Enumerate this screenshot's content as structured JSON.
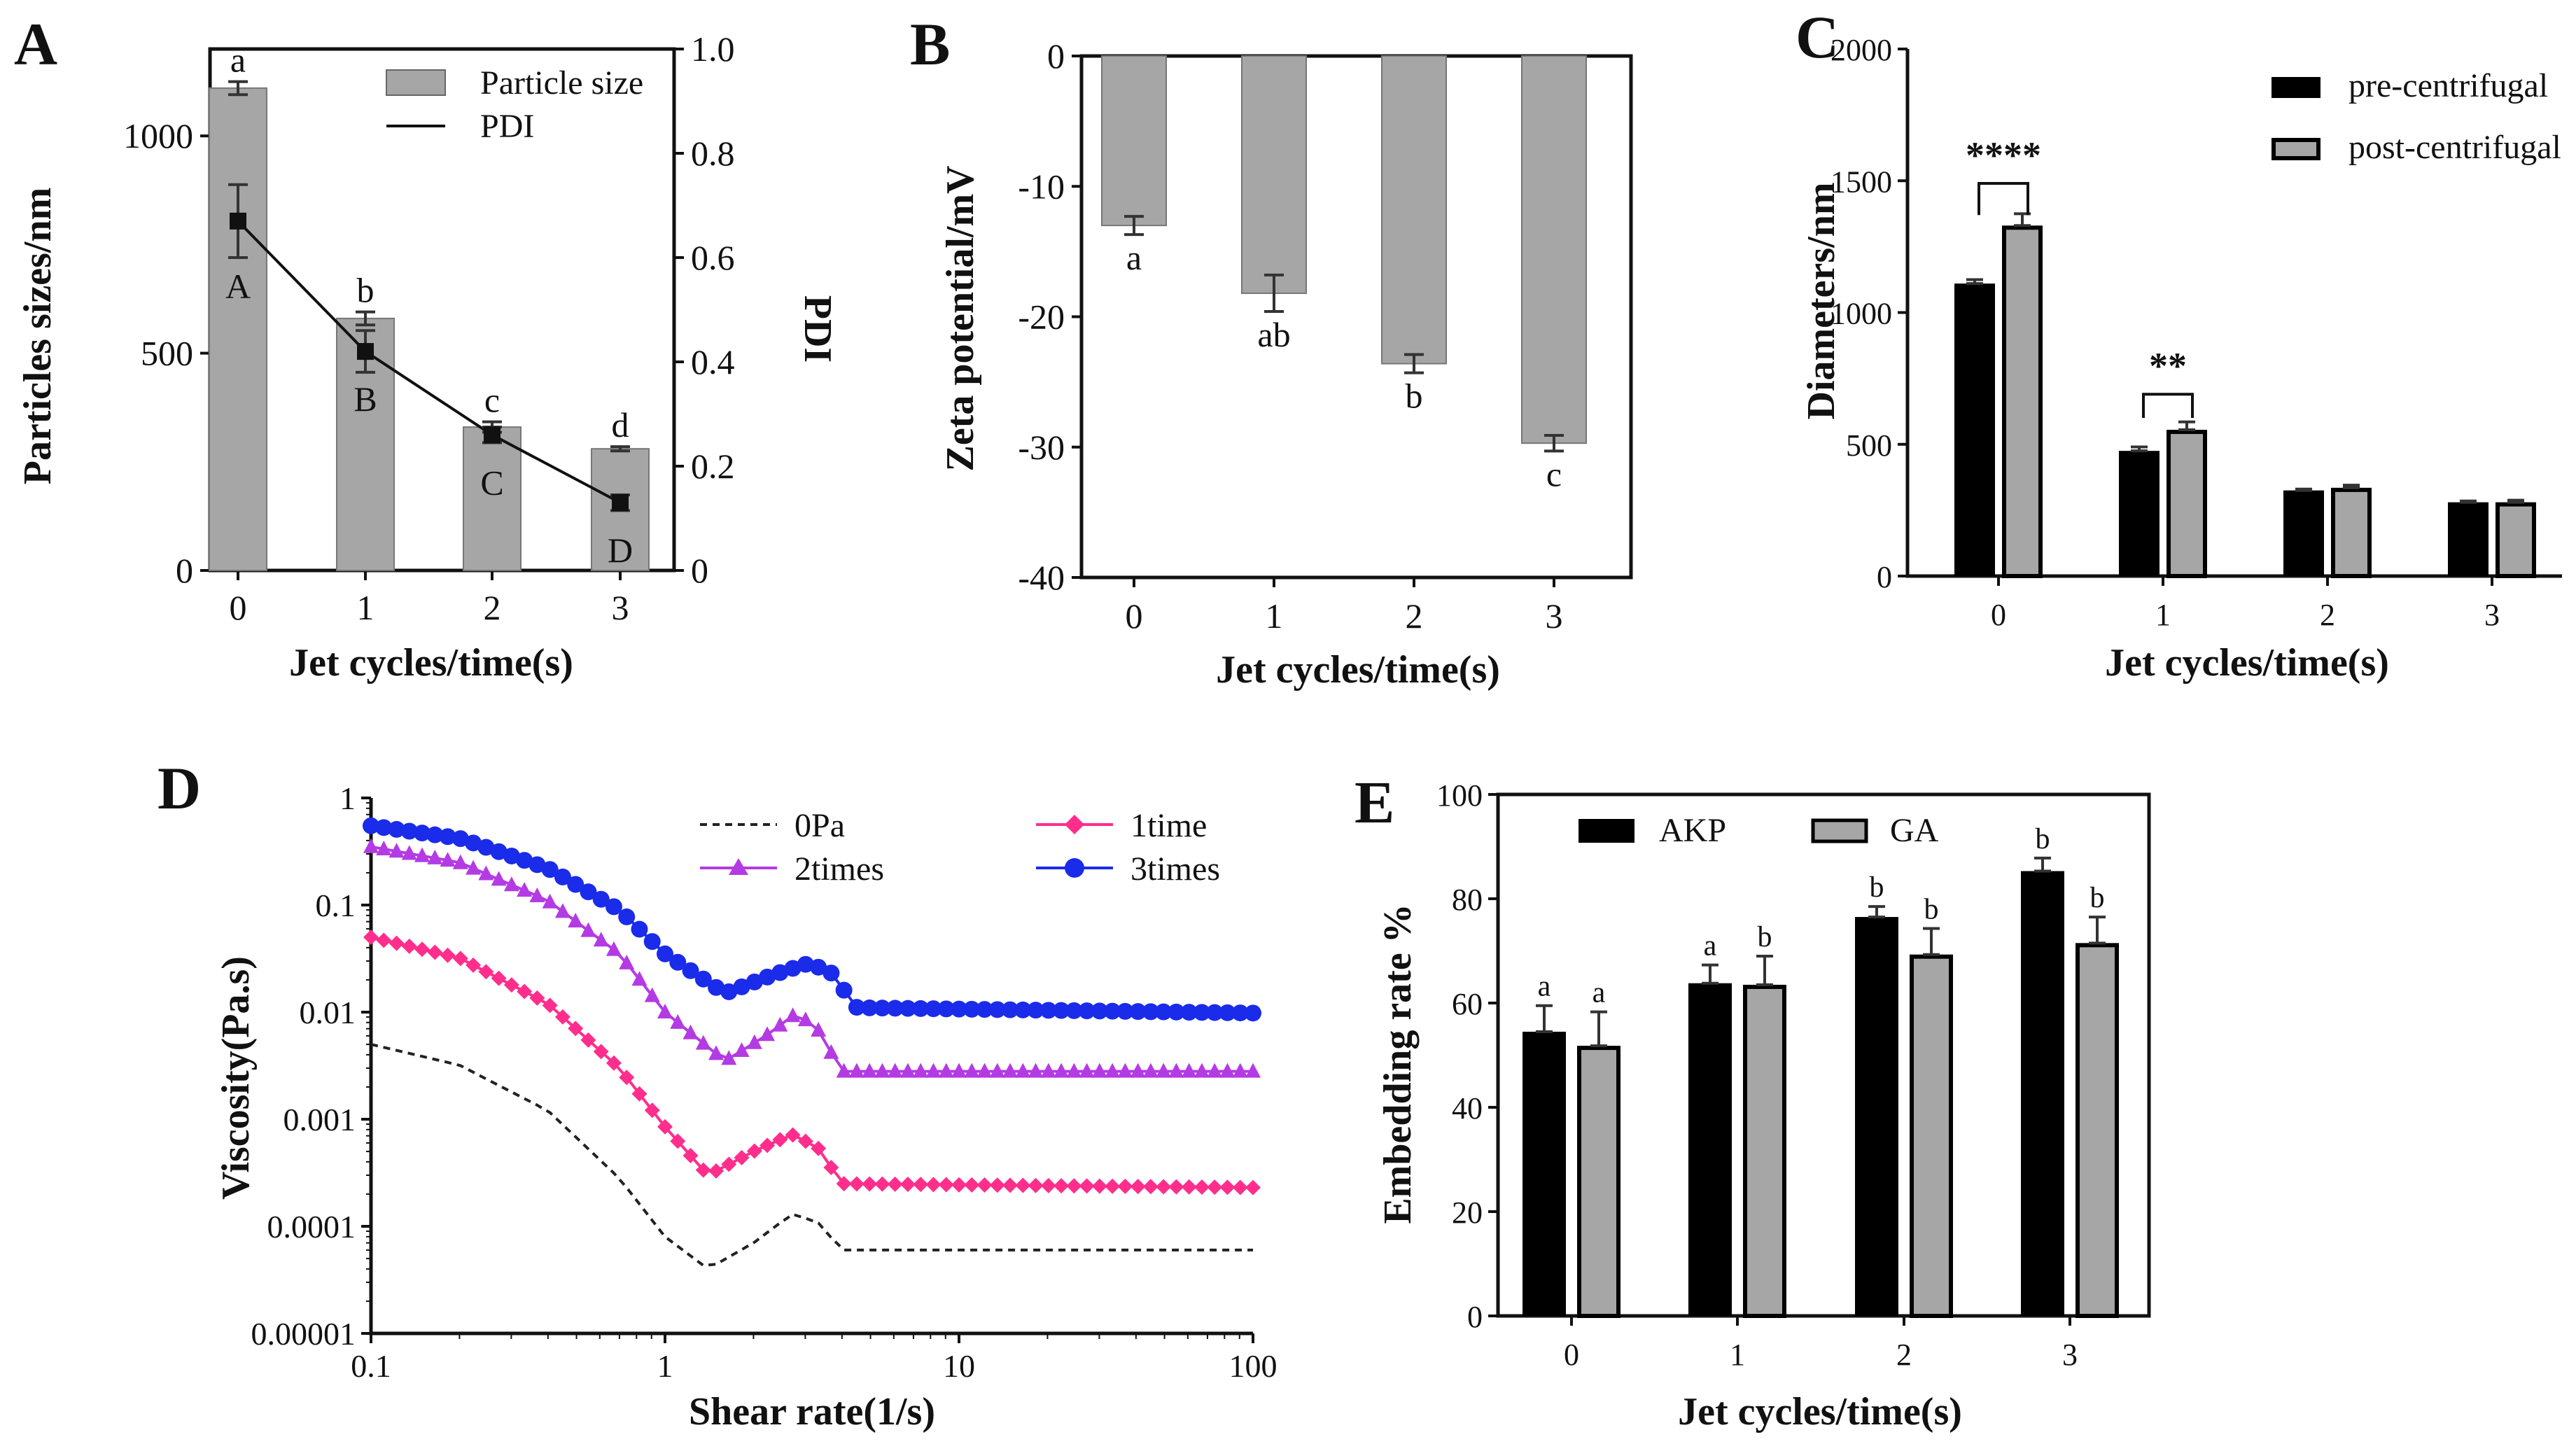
{
  "colors": {
    "gray_bar": "#a6a6a6",
    "black_bar": "#000000",
    "pink": "#ff2e8c",
    "purple": "#b43be3",
    "blue": "#1a2bea",
    "dark": "#222222"
  },
  "chart_data": [
    {
      "id": "A",
      "type": "bar",
      "panel_letter": "A",
      "categories": [
        "0",
        "1",
        "2",
        "3"
      ],
      "xlabel": "Jet cycles/time(s)",
      "ylabel": "Particles sizes/nm",
      "y2label": "PDI",
      "ylim": [
        0,
        1200
      ],
      "yticks": [
        0,
        500,
        1000
      ],
      "y2lim": [
        0,
        1.0
      ],
      "y2ticks": [
        "0",
        "0.2",
        "0.4",
        "0.6",
        "0.8",
        "1.0"
      ],
      "series": [
        {
          "name": "Particle size",
          "kind": "bar",
          "values": [
            1110,
            580,
            330,
            280
          ],
          "errors": [
            15,
            15,
            12,
            5
          ],
          "letters": [
            "a",
            "b",
            "c",
            "d"
          ]
        },
        {
          "name": "PDI",
          "kind": "line",
          "values": [
            0.67,
            0.42,
            0.26,
            0.13
          ],
          "errors": [
            0.07,
            0.04,
            0.015,
            0.015
          ],
          "letters": [
            "A",
            "B",
            "C",
            "D"
          ]
        }
      ],
      "legend": [
        "Particle size",
        "PDI"
      ]
    },
    {
      "id": "B",
      "type": "bar",
      "panel_letter": "B",
      "categories": [
        "0",
        "1",
        "2",
        "3"
      ],
      "xlabel": "Jet cycles/time(s)",
      "ylabel": "Zeta potential/mV",
      "ylim": [
        -40,
        0
      ],
      "yticks": [
        "0",
        "-10",
        "-20",
        "-30",
        "-40"
      ],
      "values": [
        -13.0,
        -18.2,
        -23.6,
        -29.7
      ],
      "errors": [
        0.7,
        1.4,
        0.7,
        0.6
      ],
      "letters": [
        "a",
        "ab",
        "b",
        "c"
      ]
    },
    {
      "id": "C",
      "type": "bar",
      "panel_letter": "C",
      "categories": [
        "0",
        "1",
        "2",
        "3"
      ],
      "xlabel": "Jet cycles/time(s)",
      "ylabel": "Diameters/nm",
      "ylim": [
        0,
        2000
      ],
      "yticks": [
        "0",
        "500",
        "1000",
        "1500",
        "2000"
      ],
      "series": [
        {
          "name": "pre-centrifugal",
          "values": [
            1110,
            475,
            325,
            280
          ],
          "errors": [
            15,
            15,
            5,
            5
          ]
        },
        {
          "name": "post-centrifugal",
          "values": [
            1330,
            555,
            335,
            280
          ],
          "errors": [
            45,
            30,
            10,
            8
          ]
        }
      ],
      "significance": [
        "****",
        "**"
      ]
    },
    {
      "id": "D",
      "type": "line",
      "panel_letter": "D",
      "xlabel": "Shear rate(1/s)",
      "ylabel": "Viscosity(Pa.s)",
      "xscale": "log",
      "yscale": "log",
      "xlim": [
        0.1,
        100
      ],
      "ylim": [
        1e-05,
        1
      ],
      "xticks": [
        "0.1",
        "1",
        "10",
        "100"
      ],
      "yticks": [
        "1",
        "0.1",
        "0.01",
        "0.001",
        "0.0001",
        "0.00001"
      ],
      "series": [
        {
          "name": "0Pa",
          "style": "dashed",
          "x": [
            0.1,
            0.2,
            0.4,
            0.7,
            1.0,
            1.4,
            2.0,
            2.7,
            3.3,
            4.0,
            100
          ],
          "y": [
            0.005,
            0.0032,
            0.0012,
            0.00028,
            8e-05,
            4e-05,
            7e-05,
            0.00013,
            0.00011,
            6e-05,
            6e-05
          ]
        },
        {
          "name": "1time",
          "style": "diamond",
          "x": [
            0.1,
            0.2,
            0.4,
            0.7,
            1.0,
            1.4,
            2.0,
            2.7,
            3.3,
            4.0,
            100
          ],
          "y": [
            0.05,
            0.032,
            0.012,
            0.003,
            0.00085,
            0.0003,
            0.0005,
            0.00072,
            0.00055,
            0.00025,
            0.00023
          ]
        },
        {
          "name": "2times",
          "style": "triangle",
          "x": [
            0.1,
            0.2,
            0.4,
            0.7,
            1.0,
            1.6,
            2.2,
            2.8,
            3.3,
            4.0,
            100
          ],
          "y": [
            0.35,
            0.25,
            0.11,
            0.035,
            0.01,
            0.0035,
            0.006,
            0.0098,
            0.007,
            0.0028,
            0.0028
          ]
        },
        {
          "name": "3times",
          "style": "circle",
          "x": [
            0.1,
            0.2,
            0.4,
            0.7,
            1.0,
            1.6,
            2.3,
            3.0,
            3.6,
            4.5,
            100
          ],
          "y": [
            0.55,
            0.42,
            0.22,
            0.09,
            0.035,
            0.015,
            0.022,
            0.028,
            0.025,
            0.011,
            0.0098
          ]
        }
      ],
      "legend": [
        "0Pa",
        "1time",
        "2times",
        "3times"
      ]
    },
    {
      "id": "E",
      "type": "bar",
      "panel_letter": "E",
      "categories": [
        "0",
        "1",
        "2",
        "3"
      ],
      "xlabel": "Jet cycles/time(s)",
      "ylabel": "Embedding rate %",
      "ylim": [
        0,
        100
      ],
      "yticks": [
        "0",
        "20",
        "40",
        "60",
        "80",
        "100"
      ],
      "series": [
        {
          "name": "AKP",
          "values": [
            54.5,
            63.8,
            76.5,
            85.3
          ],
          "errors": [
            5,
            3.5,
            2,
            2.5
          ],
          "letters": [
            "a",
            "a",
            "b",
            "b"
          ]
        },
        {
          "name": "GA",
          "values": [
            51.8,
            63.5,
            69.3,
            71.5
          ],
          "errors": [
            6.5,
            5.5,
            5,
            5
          ],
          "letters": [
            "a",
            "b",
            "b",
            "b"
          ]
        }
      ],
      "legend": [
        "AKP",
        "GA"
      ]
    }
  ]
}
